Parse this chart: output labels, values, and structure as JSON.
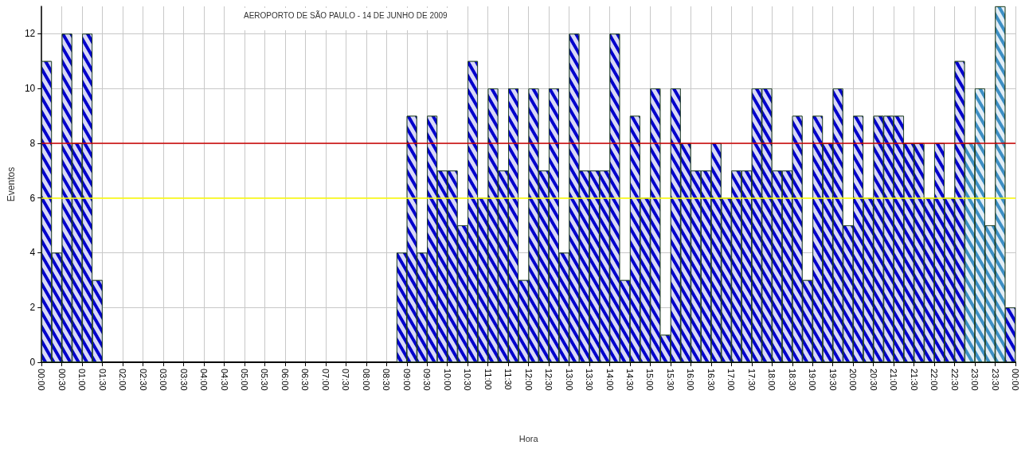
{
  "chart_data": {
    "type": "bar",
    "title": "AEROPORTO DE SÃO PAULO - 14 DE JUNHO DE 2009",
    "xlabel": "Hora",
    "ylabel": "Eventos",
    "x": [
      0.125,
      0.375,
      0.625,
      0.875,
      1.125,
      1.375,
      1.625,
      1.875,
      2.125,
      2.375,
      2.625,
      2.875,
      3.125,
      3.375,
      3.625,
      3.875,
      4.125,
      4.375,
      4.625,
      4.875,
      5.125,
      5.375,
      5.625,
      5.875,
      6.125,
      6.375,
      6.625,
      6.875,
      7.125,
      7.375,
      7.625,
      7.875,
      8.125,
      8.375,
      8.625,
      8.875,
      9.125,
      9.375,
      9.625,
      9.875,
      10.125,
      10.375,
      10.625,
      10.875,
      11.125,
      11.375,
      11.625,
      11.875,
      12.125,
      12.375,
      12.625,
      12.875,
      13.125,
      13.375,
      13.625,
      13.875,
      14.125,
      14.375,
      14.625,
      14.875,
      15.125,
      15.375,
      15.625,
      15.875,
      16.125,
      16.375,
      16.625,
      16.875,
      17.125,
      17.375,
      17.625,
      17.875,
      18.125,
      18.375,
      18.625,
      18.875,
      19.125,
      19.375,
      19.625,
      19.875,
      20.125,
      20.375,
      20.625,
      20.875,
      21.125,
      21.375,
      21.625,
      21.875,
      22.125,
      22.375,
      22.625,
      22.875,
      23.125,
      23.375,
      23.625,
      23.875
    ],
    "values": [
      11,
      4,
      12,
      8,
      12,
      3,
      0,
      0,
      0,
      0,
      0,
      0,
      0,
      0,
      0,
      0,
      0,
      0,
      0,
      0,
      0,
      0,
      0,
      0,
      0,
      0,
      0,
      0,
      0,
      0,
      0,
      0,
      0,
      0,
      0,
      4,
      9,
      4,
      9,
      7,
      7,
      5,
      11,
      6,
      10,
      7,
      10,
      3,
      10,
      7,
      10,
      4,
      12,
      7,
      7,
      7,
      12,
      3,
      9,
      6,
      10,
      1,
      10,
      8,
      7,
      7,
      8,
      6,
      7,
      7,
      10,
      10,
      7,
      7,
      9,
      3,
      9,
      8,
      10,
      5,
      9,
      6,
      9,
      9,
      9,
      8,
      8,
      6,
      8,
      6,
      11,
      8,
      10,
      5,
      13,
      2
    ],
    "colors": [
      "#0000cc",
      "#0000cc",
      "#0000cc",
      "#0000cc",
      "#0000cc",
      "#0000cc",
      "#0000cc",
      "#0000cc",
      "#0000cc",
      "#0000cc",
      "#0000cc",
      "#0000cc",
      "#0000cc",
      "#0000cc",
      "#0000cc",
      "#0000cc",
      "#0000cc",
      "#0000cc",
      "#0000cc",
      "#0000cc",
      "#0000cc",
      "#0000cc",
      "#0000cc",
      "#0000cc",
      "#0000cc",
      "#0000cc",
      "#0000cc",
      "#0000cc",
      "#0000cc",
      "#0000cc",
      "#0000cc",
      "#0000cc",
      "#0000cc",
      "#0000cc",
      "#0000cc",
      "#0000cc",
      "#0000cc",
      "#0000cc",
      "#0000cc",
      "#0000cc",
      "#0000cc",
      "#0000cc",
      "#0000cc",
      "#0000cc",
      "#0000cc",
      "#0000cc",
      "#0000cc",
      "#0000cc",
      "#0000cc",
      "#0000cc",
      "#0000cc",
      "#0000cc",
      "#0000cc",
      "#0000cc",
      "#0000cc",
      "#0000cc",
      "#0000cc",
      "#0000cc",
      "#0000cc",
      "#0000cc",
      "#0000cc",
      "#0000cc",
      "#0000cc",
      "#0000cc",
      "#0000cc",
      "#0000cc",
      "#0000cc",
      "#0000cc",
      "#0000cc",
      "#0000cc",
      "#0000cc",
      "#0000cc",
      "#0000cc",
      "#0000cc",
      "#0000cc",
      "#0000cc",
      "#0000cc",
      "#0000cc",
      "#0000cc",
      "#0000cc",
      "#0000cc",
      "#0000cc",
      "#0000cc",
      "#0000cc",
      "#0000cc",
      "#0000cc",
      "#0000cc",
      "#0000cc",
      "#0000cc",
      "#0000cc",
      "#0000cc",
      "#3d8fc4",
      "#3d8fc4",
      "#3d8fc4",
      "#3d8fc4",
      "#0000cc"
    ],
    "xlim": [
      0,
      24
    ],
    "xticks": [
      {
        "value": 0,
        "label": "00:00"
      },
      {
        "value": 0.5,
        "label": "00:30"
      },
      {
        "value": 1,
        "label": "01:00"
      },
      {
        "value": 1.5,
        "label": "01:30"
      },
      {
        "value": 2,
        "label": "02:00"
      },
      {
        "value": 2.5,
        "label": "02:30"
      },
      {
        "value": 3,
        "label": "03:00"
      },
      {
        "value": 3.5,
        "label": "03:30"
      },
      {
        "value": 4,
        "label": "04:00"
      },
      {
        "value": 4.5,
        "label": "04:30"
      },
      {
        "value": 5,
        "label": "05:00"
      },
      {
        "value": 5.5,
        "label": "05:30"
      },
      {
        "value": 6,
        "label": "06:00"
      },
      {
        "value": 6.5,
        "label": "06:30"
      },
      {
        "value": 7,
        "label": "07:00"
      },
      {
        "value": 7.5,
        "label": "07:30"
      },
      {
        "value": 8,
        "label": "08:00"
      },
      {
        "value": 8.5,
        "label": "08:30"
      },
      {
        "value": 9,
        "label": "09:00"
      },
      {
        "value": 9.5,
        "label": "09:30"
      },
      {
        "value": 10,
        "label": "10:00"
      },
      {
        "value": 10.5,
        "label": "10:30"
      },
      {
        "value": 11,
        "label": "11:00"
      },
      {
        "value": 11.5,
        "label": "11:30"
      },
      {
        "value": 12,
        "label": "12:00"
      },
      {
        "value": 12.5,
        "label": "12:30"
      },
      {
        "value": 13,
        "label": "13:00"
      },
      {
        "value": 13.5,
        "label": "13:30"
      },
      {
        "value": 14,
        "label": "14:00"
      },
      {
        "value": 14.5,
        "label": "14:30"
      },
      {
        "value": 15,
        "label": "15:00"
      },
      {
        "value": 15.5,
        "label": "15:30"
      },
      {
        "value": 16,
        "label": "16:00"
      },
      {
        "value": 16.5,
        "label": "16:30"
      },
      {
        "value": 17,
        "label": "17:00"
      },
      {
        "value": 17.5,
        "label": "17:30"
      },
      {
        "value": 18,
        "label": "18:00"
      },
      {
        "value": 18.5,
        "label": "18:30"
      },
      {
        "value": 19,
        "label": "19:00"
      },
      {
        "value": 19.5,
        "label": "19:30"
      },
      {
        "value": 20,
        "label": "20:00"
      },
      {
        "value": 20.5,
        "label": "20:30"
      },
      {
        "value": 21,
        "label": "21:00"
      },
      {
        "value": 21.5,
        "label": "21:30"
      },
      {
        "value": 22,
        "label": "22:00"
      },
      {
        "value": 22.5,
        "label": "22:30"
      },
      {
        "value": 23,
        "label": "23:00"
      },
      {
        "value": 23.5,
        "label": "23:30"
      },
      {
        "value": 24,
        "label": "00:00"
      }
    ],
    "ylim": [
      0,
      13
    ],
    "yticks": [
      0,
      2,
      4,
      6,
      8,
      10,
      12
    ],
    "ref_lines": [
      {
        "axis": "y",
        "value": 8,
        "color": "#cc0000"
      },
      {
        "axis": "y",
        "value": 6,
        "color": "#ffff00"
      }
    ],
    "grid": true
  }
}
